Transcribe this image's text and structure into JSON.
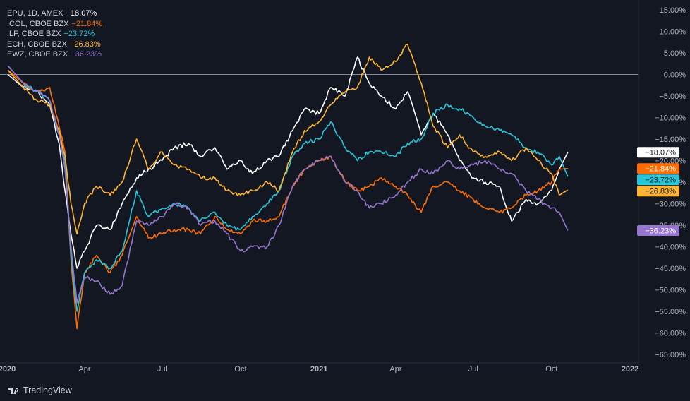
{
  "chart_data": {
    "type": "line",
    "y_unit": "%",
    "ylim": [
      -65,
      15
    ],
    "y_ticks": [
      "15.00%",
      "10.00%",
      "5.00%",
      "0.00%",
      "-5.00%",
      "-10.00%",
      "-15.00%",
      "-20.00%",
      "-25.00%",
      "-30.00%",
      "-35.00%",
      "-40.00%",
      "-45.00%",
      "-50.00%",
      "-55.00%",
      "-60.00%",
      "-65.00%"
    ],
    "x_ticks": [
      {
        "label": "2020",
        "x": "2020-01-01"
      },
      {
        "label": "Apr",
        "x": "2020-04-01"
      },
      {
        "label": "Jul",
        "x": "2020-07-01"
      },
      {
        "label": "Oct",
        "x": "2020-10-01"
      },
      {
        "label": "2021",
        "x": "2021-01-01"
      },
      {
        "label": "Apr",
        "x": "2021-04-01"
      },
      {
        "label": "Jul",
        "x": "2021-07-01"
      },
      {
        "label": "Oct",
        "x": "2021-10-01"
      },
      {
        "label": "2022",
        "x": "2022-01-01"
      }
    ],
    "series": [
      {
        "name": "EPU, 1D, AMEX",
        "last_label": "−18.07%",
        "color": "#ffffff",
        "points": [
          [
            "2020-01-02",
            0
          ],
          [
            "2020-01-20",
            -3
          ],
          [
            "2020-02-05",
            -4
          ],
          [
            "2020-02-20",
            -7
          ],
          [
            "2020-03-02",
            -16
          ],
          [
            "2020-03-09",
            -27
          ],
          [
            "2020-03-16",
            -37
          ],
          [
            "2020-03-23",
            -45
          ],
          [
            "2020-04-01",
            -41
          ],
          [
            "2020-04-15",
            -35
          ],
          [
            "2020-05-01",
            -36
          ],
          [
            "2020-05-15",
            -30
          ],
          [
            "2020-06-01",
            -24
          ],
          [
            "2020-06-15",
            -22
          ],
          [
            "2020-07-01",
            -20
          ],
          [
            "2020-07-15",
            -17
          ],
          [
            "2020-08-01",
            -16
          ],
          [
            "2020-08-15",
            -19
          ],
          [
            "2020-09-01",
            -17
          ],
          [
            "2020-09-15",
            -22
          ],
          [
            "2020-10-01",
            -20
          ],
          [
            "2020-10-15",
            -23
          ],
          [
            "2020-11-01",
            -20
          ],
          [
            "2020-11-15",
            -19
          ],
          [
            "2020-12-01",
            -13
          ],
          [
            "2020-12-15",
            -8
          ],
          [
            "2021-01-01",
            -9
          ],
          [
            "2021-01-15",
            -3
          ],
          [
            "2021-02-01",
            -5
          ],
          [
            "2021-02-15",
            4
          ],
          [
            "2021-03-01",
            -2
          ],
          [
            "2021-03-15",
            -5
          ],
          [
            "2021-04-01",
            -8
          ],
          [
            "2021-04-15",
            -4
          ],
          [
            "2021-05-01",
            -14
          ],
          [
            "2021-05-15",
            -9
          ],
          [
            "2021-06-01",
            -14
          ],
          [
            "2021-06-15",
            -20
          ],
          [
            "2021-07-01",
            -24
          ],
          [
            "2021-07-15",
            -25
          ],
          [
            "2021-08-01",
            -26
          ],
          [
            "2021-08-15",
            -34
          ],
          [
            "2021-09-01",
            -29
          ],
          [
            "2021-09-15",
            -30
          ],
          [
            "2021-10-01",
            -27
          ],
          [
            "2021-10-10",
            -22
          ],
          [
            "2021-10-20",
            -18.07
          ]
        ]
      },
      {
        "name": "ICOL, CBOE BZX",
        "last_label": "−21.84%",
        "color": "#ff6d00",
        "points": [
          [
            "2020-01-02",
            1
          ],
          [
            "2020-01-20",
            -2
          ],
          [
            "2020-02-05",
            -4
          ],
          [
            "2020-02-20",
            -3
          ],
          [
            "2020-03-02",
            -12
          ],
          [
            "2020-03-09",
            -18
          ],
          [
            "2020-03-16",
            -43
          ],
          [
            "2020-03-23",
            -59
          ],
          [
            "2020-04-01",
            -46
          ],
          [
            "2020-04-15",
            -42
          ],
          [
            "2020-05-01",
            -46
          ],
          [
            "2020-05-15",
            -42
          ],
          [
            "2020-06-01",
            -33
          ],
          [
            "2020-06-15",
            -38
          ],
          [
            "2020-07-01",
            -37
          ],
          [
            "2020-07-15",
            -36
          ],
          [
            "2020-08-01",
            -36
          ],
          [
            "2020-08-15",
            -37
          ],
          [
            "2020-09-01",
            -33
          ],
          [
            "2020-09-15",
            -36
          ],
          [
            "2020-10-01",
            -37
          ],
          [
            "2020-10-15",
            -34
          ],
          [
            "2020-11-01",
            -34
          ],
          [
            "2020-11-15",
            -33
          ],
          [
            "2020-12-01",
            -26
          ],
          [
            "2020-12-15",
            -22
          ],
          [
            "2021-01-01",
            -20
          ],
          [
            "2021-01-15",
            -19
          ],
          [
            "2021-02-01",
            -25
          ],
          [
            "2021-02-15",
            -27
          ],
          [
            "2021-03-01",
            -26
          ],
          [
            "2021-03-15",
            -24
          ],
          [
            "2021-04-01",
            -26
          ],
          [
            "2021-04-15",
            -28
          ],
          [
            "2021-05-01",
            -32
          ],
          [
            "2021-05-15",
            -26
          ],
          [
            "2021-06-01",
            -25
          ],
          [
            "2021-06-15",
            -27
          ],
          [
            "2021-07-01",
            -29
          ],
          [
            "2021-07-15",
            -31
          ],
          [
            "2021-08-01",
            -32
          ],
          [
            "2021-08-15",
            -31
          ],
          [
            "2021-09-01",
            -28
          ],
          [
            "2021-09-15",
            -27
          ],
          [
            "2021-10-01",
            -25
          ],
          [
            "2021-10-10",
            -22
          ],
          [
            "2021-10-20",
            -21.84
          ]
        ]
      },
      {
        "name": "ILF, CBOE BZX",
        "last_label": "−23.72%",
        "color": "#26c6da",
        "points": [
          [
            "2020-01-02",
            2
          ],
          [
            "2020-01-20",
            -2
          ],
          [
            "2020-02-05",
            -4
          ],
          [
            "2020-02-20",
            -6
          ],
          [
            "2020-03-02",
            -14
          ],
          [
            "2020-03-09",
            -20
          ],
          [
            "2020-03-16",
            -42
          ],
          [
            "2020-03-23",
            -55
          ],
          [
            "2020-04-01",
            -46
          ],
          [
            "2020-04-15",
            -43
          ],
          [
            "2020-05-01",
            -45
          ],
          [
            "2020-05-15",
            -41
          ],
          [
            "2020-06-01",
            -27
          ],
          [
            "2020-06-15",
            -33
          ],
          [
            "2020-07-01",
            -31
          ],
          [
            "2020-07-15",
            -30
          ],
          [
            "2020-08-01",
            -31
          ],
          [
            "2020-08-15",
            -34
          ],
          [
            "2020-09-01",
            -32
          ],
          [
            "2020-09-15",
            -35
          ],
          [
            "2020-10-01",
            -36
          ],
          [
            "2020-10-15",
            -33
          ],
          [
            "2020-11-01",
            -30
          ],
          [
            "2020-11-15",
            -27
          ],
          [
            "2020-12-01",
            -19
          ],
          [
            "2020-12-15",
            -16
          ],
          [
            "2021-01-01",
            -15
          ],
          [
            "2021-01-15",
            -11
          ],
          [
            "2021-02-01",
            -17
          ],
          [
            "2021-02-15",
            -20
          ],
          [
            "2021-03-01",
            -18
          ],
          [
            "2021-03-15",
            -18
          ],
          [
            "2021-04-01",
            -19
          ],
          [
            "2021-04-15",
            -16
          ],
          [
            "2021-05-01",
            -15
          ],
          [
            "2021-05-15",
            -9
          ],
          [
            "2021-06-01",
            -7
          ],
          [
            "2021-06-15",
            -8
          ],
          [
            "2021-07-01",
            -10
          ],
          [
            "2021-07-15",
            -12
          ],
          [
            "2021-08-01",
            -13
          ],
          [
            "2021-08-15",
            -14
          ],
          [
            "2021-09-01",
            -17
          ],
          [
            "2021-09-15",
            -18
          ],
          [
            "2021-10-01",
            -21
          ],
          [
            "2021-10-10",
            -19
          ],
          [
            "2021-10-20",
            -23.72
          ]
        ]
      },
      {
        "name": "ECH, CBOE BZX",
        "last_label": "−26.83%",
        "color": "#ffb534",
        "points": [
          [
            "2020-01-02",
            1
          ],
          [
            "2020-01-20",
            -3
          ],
          [
            "2020-02-05",
            -6
          ],
          [
            "2020-02-20",
            -7
          ],
          [
            "2020-03-02",
            -13
          ],
          [
            "2020-03-09",
            -19
          ],
          [
            "2020-03-16",
            -30
          ],
          [
            "2020-03-23",
            -37
          ],
          [
            "2020-04-01",
            -30
          ],
          [
            "2020-04-15",
            -26
          ],
          [
            "2020-05-01",
            -28
          ],
          [
            "2020-05-15",
            -25
          ],
          [
            "2020-06-01",
            -15
          ],
          [
            "2020-06-15",
            -22
          ],
          [
            "2020-07-01",
            -18
          ],
          [
            "2020-07-15",
            -21
          ],
          [
            "2020-08-01",
            -22
          ],
          [
            "2020-08-15",
            -24
          ],
          [
            "2020-09-01",
            -24
          ],
          [
            "2020-09-15",
            -27
          ],
          [
            "2020-10-01",
            -28
          ],
          [
            "2020-10-15",
            -27
          ],
          [
            "2020-11-01",
            -25
          ],
          [
            "2020-11-15",
            -27
          ],
          [
            "2020-12-01",
            -18
          ],
          [
            "2020-12-15",
            -13
          ],
          [
            "2021-01-01",
            -11
          ],
          [
            "2021-01-15",
            -7
          ],
          [
            "2021-02-01",
            -4
          ],
          [
            "2021-02-15",
            -3
          ],
          [
            "2021-03-01",
            4
          ],
          [
            "2021-03-15",
            1
          ],
          [
            "2021-04-01",
            3
          ],
          [
            "2021-04-15",
            7
          ],
          [
            "2021-05-01",
            -2
          ],
          [
            "2021-05-15",
            -12
          ],
          [
            "2021-06-01",
            -17
          ],
          [
            "2021-06-15",
            -14
          ],
          [
            "2021-07-01",
            -18
          ],
          [
            "2021-07-15",
            -19
          ],
          [
            "2021-08-01",
            -18
          ],
          [
            "2021-08-15",
            -20
          ],
          [
            "2021-09-01",
            -17
          ],
          [
            "2021-09-15",
            -20
          ],
          [
            "2021-10-01",
            -23
          ],
          [
            "2021-10-10",
            -28
          ],
          [
            "2021-10-20",
            -26.83
          ]
        ]
      },
      {
        "name": "EWZ, CBOE BZX",
        "legend_text": "EWZ, CBOE BZX",
        "last_label": "−36.23%",
        "color": "#9575cd",
        "points": [
          [
            "2020-01-02",
            2
          ],
          [
            "2020-01-20",
            -2
          ],
          [
            "2020-02-05",
            -4
          ],
          [
            "2020-02-20",
            -6
          ],
          [
            "2020-03-02",
            -14
          ],
          [
            "2020-03-09",
            -22
          ],
          [
            "2020-03-16",
            -40
          ],
          [
            "2020-03-23",
            -53
          ],
          [
            "2020-04-01",
            -47
          ],
          [
            "2020-04-15",
            -48
          ],
          [
            "2020-05-01",
            -51
          ],
          [
            "2020-05-15",
            -49
          ],
          [
            "2020-06-01",
            -34
          ],
          [
            "2020-06-15",
            -35
          ],
          [
            "2020-07-01",
            -33
          ],
          [
            "2020-07-15",
            -30
          ],
          [
            "2020-08-01",
            -31
          ],
          [
            "2020-08-15",
            -35
          ],
          [
            "2020-09-01",
            -34
          ],
          [
            "2020-09-15",
            -37
          ],
          [
            "2020-10-01",
            -41
          ],
          [
            "2020-10-15",
            -40
          ],
          [
            "2020-11-01",
            -40
          ],
          [
            "2020-11-15",
            -35
          ],
          [
            "2020-12-01",
            -26
          ],
          [
            "2020-12-15",
            -22
          ],
          [
            "2021-01-01",
            -20
          ],
          [
            "2021-01-15",
            -19
          ],
          [
            "2021-02-01",
            -25
          ],
          [
            "2021-02-15",
            -27
          ],
          [
            "2021-03-01",
            -31
          ],
          [
            "2021-03-15",
            -30
          ],
          [
            "2021-04-01",
            -28
          ],
          [
            "2021-04-15",
            -25
          ],
          [
            "2021-05-01",
            -22
          ],
          [
            "2021-05-15",
            -23
          ],
          [
            "2021-06-01",
            -20
          ],
          [
            "2021-06-15",
            -22
          ],
          [
            "2021-07-01",
            -21
          ],
          [
            "2021-07-15",
            -20
          ],
          [
            "2021-08-01",
            -22
          ],
          [
            "2021-08-15",
            -23
          ],
          [
            "2021-09-01",
            -27
          ],
          [
            "2021-09-15",
            -29
          ],
          [
            "2021-10-01",
            -31
          ],
          [
            "2021-10-10",
            -32
          ],
          [
            "2021-10-20",
            -36.23
          ]
        ]
      }
    ],
    "zero_line": true
  },
  "footer": {
    "brand": "TradingView"
  }
}
